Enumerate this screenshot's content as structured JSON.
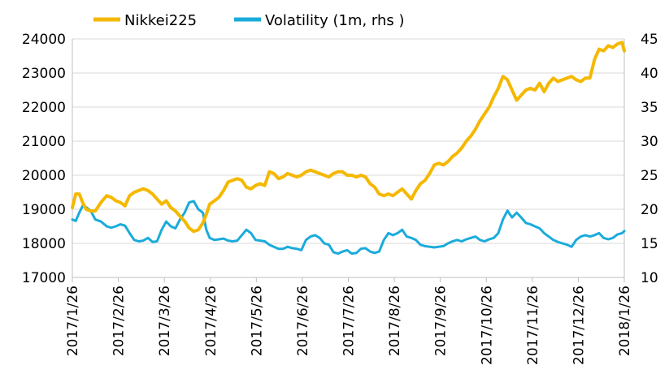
{
  "chart_data": {
    "type": "line",
    "title": "",
    "xlabel": "",
    "ylabel": "",
    "y2label": "",
    "legend_position": "top-left",
    "grid": "horizontal",
    "x_ticks": [
      "2017/1/26",
      "2017/2/26",
      "2017/3/26",
      "2017/4/26",
      "2017/5/26",
      "2017/6/26",
      "2017/7/26",
      "2017/8/26",
      "2017/9/26",
      "2017/10/26",
      "2017/11/26",
      "2017/12/26",
      "2018/1/26"
    ],
    "ylim": [
      17000,
      24000
    ],
    "y_ticks": [
      "17000",
      "18000",
      "19000",
      "20000",
      "21000",
      "22000",
      "23000",
      "24000"
    ],
    "y2lim": [
      10,
      45
    ],
    "y2_ticks": [
      "10",
      "15",
      "20",
      "25",
      "30",
      "35",
      "40",
      "45"
    ],
    "series": [
      {
        "name": "Nikkei225",
        "axis": "left",
        "color": "#F5B800",
        "points": [
          [
            0,
            19050
          ],
          [
            0.3,
            19450
          ],
          [
            0.6,
            19450
          ],
          [
            0.9,
            19200
          ],
          [
            1.2,
            19000
          ],
          [
            1.6,
            18950
          ],
          [
            2,
            18950
          ],
          [
            2.5,
            19200
          ],
          [
            3,
            19400
          ],
          [
            3.4,
            19350
          ],
          [
            3.8,
            19250
          ],
          [
            4.2,
            19200
          ],
          [
            4.6,
            19100
          ],
          [
            5,
            19400
          ],
          [
            5.4,
            19500
          ],
          [
            5.8,
            19550
          ],
          [
            6.2,
            19600
          ],
          [
            6.6,
            19550
          ],
          [
            7,
            19450
          ],
          [
            7.4,
            19300
          ],
          [
            7.8,
            19150
          ],
          [
            8.2,
            19250
          ],
          [
            8.6,
            19050
          ],
          [
            9,
            18950
          ],
          [
            9.4,
            18800
          ],
          [
            9.8,
            18650
          ],
          [
            10.2,
            18450
          ],
          [
            10.6,
            18350
          ],
          [
            11,
            18400
          ],
          [
            11.4,
            18600
          ],
          [
            11.7,
            18850
          ],
          [
            12,
            19150
          ],
          [
            12.4,
            19250
          ],
          [
            12.8,
            19350
          ],
          [
            13.2,
            19550
          ],
          [
            13.6,
            19800
          ],
          [
            14,
            19850
          ],
          [
            14.4,
            19900
          ],
          [
            14.8,
            19850
          ],
          [
            15.2,
            19650
          ],
          [
            15.6,
            19600
          ],
          [
            16,
            19700
          ],
          [
            16.4,
            19750
          ],
          [
            16.8,
            19700
          ],
          [
            17.2,
            20100
          ],
          [
            17.6,
            20050
          ],
          [
            18,
            19900
          ],
          [
            18.4,
            19950
          ],
          [
            18.8,
            20050
          ],
          [
            19.2,
            20000
          ],
          [
            19.6,
            19950
          ],
          [
            20,
            20000
          ],
          [
            20.4,
            20100
          ],
          [
            20.8,
            20150
          ],
          [
            21.2,
            20100
          ],
          [
            21.6,
            20050
          ],
          [
            22,
            20000
          ],
          [
            22.4,
            19950
          ],
          [
            22.8,
            20050
          ],
          [
            23.2,
            20100
          ],
          [
            23.6,
            20100
          ],
          [
            24,
            20000
          ],
          [
            24.4,
            20000
          ],
          [
            24.8,
            19950
          ],
          [
            25.2,
            20000
          ],
          [
            25.6,
            19950
          ],
          [
            26,
            19750
          ],
          [
            26.4,
            19650
          ],
          [
            26.8,
            19450
          ],
          [
            27.2,
            19400
          ],
          [
            27.6,
            19450
          ],
          [
            28,
            19400
          ],
          [
            28.4,
            19500
          ],
          [
            28.8,
            19600
          ],
          [
            29.2,
            19450
          ],
          [
            29.6,
            19300
          ],
          [
            30,
            19550
          ],
          [
            30.4,
            19750
          ],
          [
            30.8,
            19850
          ],
          [
            31.2,
            20050
          ],
          [
            31.6,
            20300
          ],
          [
            32,
            20350
          ],
          [
            32.4,
            20300
          ],
          [
            32.8,
            20400
          ],
          [
            33.2,
            20550
          ],
          [
            33.6,
            20650
          ],
          [
            34,
            20800
          ],
          [
            34.4,
            21000
          ],
          [
            34.8,
            21150
          ],
          [
            35.2,
            21350
          ],
          [
            35.6,
            21600
          ],
          [
            36,
            21800
          ],
          [
            36.4,
            22000
          ],
          [
            36.8,
            22300
          ],
          [
            37.2,
            22550
          ],
          [
            37.6,
            22900
          ],
          [
            38,
            22800
          ],
          [
            38.4,
            22500
          ],
          [
            38.8,
            22200
          ],
          [
            39.2,
            22350
          ],
          [
            39.6,
            22500
          ],
          [
            40,
            22550
          ],
          [
            40.4,
            22500
          ],
          [
            40.8,
            22700
          ],
          [
            41.2,
            22450
          ],
          [
            41.6,
            22700
          ],
          [
            42,
            22850
          ],
          [
            42.4,
            22750
          ],
          [
            42.8,
            22800
          ],
          [
            43.2,
            22850
          ],
          [
            43.6,
            22900
          ],
          [
            44,
            22800
          ],
          [
            44.4,
            22750
          ],
          [
            44.8,
            22850
          ],
          [
            45.2,
            22850
          ],
          [
            45.6,
            23400
          ],
          [
            46,
            23700
          ],
          [
            46.4,
            23650
          ],
          [
            46.8,
            23800
          ],
          [
            47.2,
            23750
          ],
          [
            47.6,
            23850
          ],
          [
            48,
            23900
          ],
          [
            48.2,
            23650
          ]
        ]
      },
      {
        "name": "Volatility (1m, rhs )",
        "axis": "right",
        "color": "#1AABDB",
        "points": [
          [
            0,
            18.5
          ],
          [
            0.3,
            18.3
          ],
          [
            0.6,
            19.5
          ],
          [
            0.9,
            20.5
          ],
          [
            1.2,
            20.3
          ],
          [
            1.6,
            19.8
          ],
          [
            2,
            18.5
          ],
          [
            2.5,
            18.2
          ],
          [
            3,
            17.5
          ],
          [
            3.4,
            17.3
          ],
          [
            3.8,
            17.5
          ],
          [
            4.2,
            17.8
          ],
          [
            4.6,
            17.6
          ],
          [
            5,
            16.5
          ],
          [
            5.4,
            15.5
          ],
          [
            5.8,
            15.3
          ],
          [
            6.2,
            15.4
          ],
          [
            6.6,
            15.8
          ],
          [
            7,
            15.2
          ],
          [
            7.4,
            15.3
          ],
          [
            7.8,
            17.0
          ],
          [
            8.2,
            18.2
          ],
          [
            8.6,
            17.5
          ],
          [
            9,
            17.2
          ],
          [
            9.4,
            18.5
          ],
          [
            9.8,
            19.5
          ],
          [
            10.2,
            21.0
          ],
          [
            10.6,
            21.2
          ],
          [
            11,
            20.0
          ],
          [
            11.4,
            19.5
          ],
          [
            11.7,
            17.0
          ],
          [
            12,
            15.8
          ],
          [
            12.4,
            15.5
          ],
          [
            12.8,
            15.6
          ],
          [
            13.2,
            15.7
          ],
          [
            13.6,
            15.4
          ],
          [
            14,
            15.3
          ],
          [
            14.4,
            15.4
          ],
          [
            14.8,
            16.2
          ],
          [
            15.2,
            17.0
          ],
          [
            15.6,
            16.5
          ],
          [
            16,
            15.5
          ],
          [
            16.4,
            15.4
          ],
          [
            16.8,
            15.3
          ],
          [
            17.2,
            14.8
          ],
          [
            17.6,
            14.5
          ],
          [
            18,
            14.2
          ],
          [
            18.4,
            14.2
          ],
          [
            18.8,
            14.5
          ],
          [
            19.2,
            14.3
          ],
          [
            19.6,
            14.2
          ],
          [
            20,
            14.0
          ],
          [
            20.4,
            15.5
          ],
          [
            20.8,
            16.0
          ],
          [
            21.2,
            16.2
          ],
          [
            21.6,
            15.8
          ],
          [
            22,
            15.0
          ],
          [
            22.4,
            14.8
          ],
          [
            22.8,
            13.7
          ],
          [
            23.2,
            13.5
          ],
          [
            23.6,
            13.8
          ],
          [
            24,
            14.0
          ],
          [
            24.4,
            13.5
          ],
          [
            24.8,
            13.6
          ],
          [
            25.2,
            14.2
          ],
          [
            25.6,
            14.3
          ],
          [
            26,
            13.8
          ],
          [
            26.4,
            13.6
          ],
          [
            26.8,
            13.8
          ],
          [
            27.2,
            15.5
          ],
          [
            27.6,
            16.5
          ],
          [
            28,
            16.2
          ],
          [
            28.4,
            16.5
          ],
          [
            28.8,
            17.0
          ],
          [
            29.2,
            16.0
          ],
          [
            29.6,
            15.8
          ],
          [
            30,
            15.5
          ],
          [
            30.4,
            14.8
          ],
          [
            30.8,
            14.6
          ],
          [
            31.2,
            14.5
          ],
          [
            31.6,
            14.4
          ],
          [
            32,
            14.5
          ],
          [
            32.4,
            14.6
          ],
          [
            32.8,
            15.0
          ],
          [
            33.2,
            15.3
          ],
          [
            33.6,
            15.5
          ],
          [
            34,
            15.3
          ],
          [
            34.4,
            15.6
          ],
          [
            34.8,
            15.8
          ],
          [
            35.2,
            16.0
          ],
          [
            35.6,
            15.5
          ],
          [
            36,
            15.3
          ],
          [
            36.4,
            15.6
          ],
          [
            36.8,
            15.8
          ],
          [
            37.2,
            16.5
          ],
          [
            37.6,
            18.5
          ],
          [
            38,
            19.8
          ],
          [
            38.4,
            18.8
          ],
          [
            38.8,
            19.5
          ],
          [
            39.2,
            18.8
          ],
          [
            39.6,
            18.0
          ],
          [
            40,
            17.8
          ],
          [
            40.4,
            17.5
          ],
          [
            40.8,
            17.2
          ],
          [
            41.2,
            16.5
          ],
          [
            41.6,
            16.0
          ],
          [
            42,
            15.5
          ],
          [
            42.4,
            15.2
          ],
          [
            42.8,
            15.0
          ],
          [
            43.2,
            14.8
          ],
          [
            43.6,
            14.5
          ],
          [
            44,
            15.5
          ],
          [
            44.4,
            16.0
          ],
          [
            44.8,
            16.2
          ],
          [
            45.2,
            16.0
          ],
          [
            45.6,
            16.2
          ],
          [
            46,
            16.5
          ],
          [
            46.4,
            15.8
          ],
          [
            46.8,
            15.6
          ],
          [
            47.2,
            15.8
          ],
          [
            47.6,
            16.3
          ],
          [
            48,
            16.5
          ],
          [
            48.2,
            16.8
          ]
        ]
      }
    ]
  }
}
